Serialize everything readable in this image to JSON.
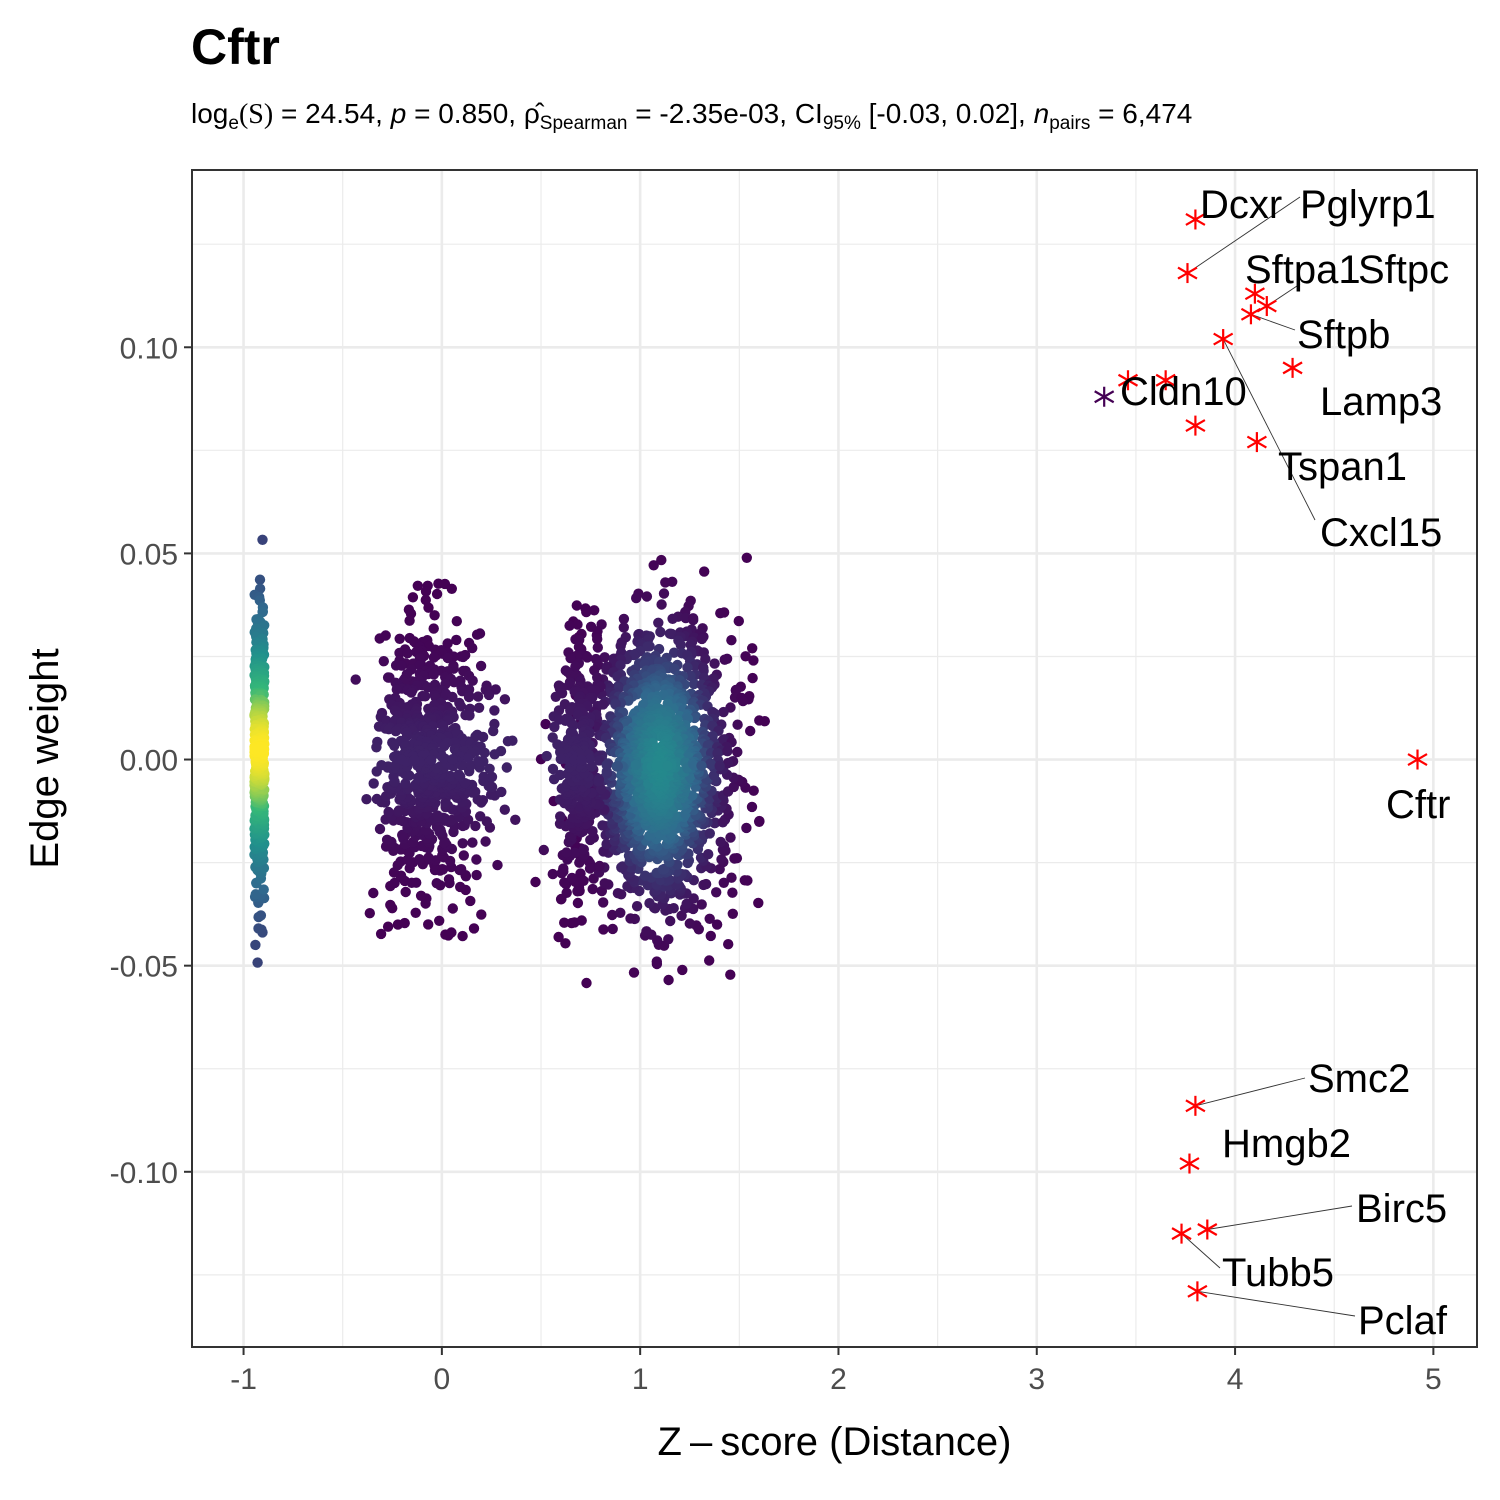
{
  "chart_data": {
    "type": "scatter",
    "title": "Cftr",
    "subtitle": {
      "log_label": "log",
      "log_sub": "e",
      "S_label": "(S)",
      "S_value": " = 24.54, ",
      "p_label": "p",
      "p_value": " = 0.850, ",
      "rho_label": "ρ̂",
      "rho_sub": "Spearman",
      "rho_value": " = -2.35e-03, ",
      "ci_label": "CI",
      "ci_sub": "95%",
      "ci_value": " [-0.03, 0.02], ",
      "n_label": "n",
      "n_sub": "pairs",
      "n_value": " = 6,474"
    },
    "xlabel": "Z – score (Distance)",
    "ylabel": "Edge weight",
    "xlim": [
      -1.26,
      5.22
    ],
    "ylim": [
      -0.1425,
      0.143
    ],
    "x_ticks": [
      "-1",
      "0",
      "1",
      "2",
      "3",
      "4",
      "5"
    ],
    "y_ticks": [
      "-0.10",
      "-0.05",
      "0.00",
      "0.05",
      "0.10"
    ],
    "grid": true,
    "background_clusters": [
      {
        "x_center": -0.92,
        "x_spread": 0.025,
        "y_min": -0.05,
        "y_max": 0.055,
        "count": 520,
        "density": "high"
      },
      {
        "x_center": -0.05,
        "x_spread": 0.26,
        "y_min": -0.043,
        "y_max": 0.043,
        "count": 700,
        "density": "low"
      },
      {
        "x_center": 1.1,
        "x_spread": 0.33,
        "y_min": -0.055,
        "y_max": 0.052,
        "count": 1500,
        "density": "medium"
      },
      {
        "x_center": 0.68,
        "x_spread": 0.1,
        "y_min": -0.046,
        "y_max": 0.046,
        "count": 260,
        "density": "low"
      }
    ],
    "highlighted_points": [
      {
        "label": "Dcxr",
        "x": 3.8,
        "y": 0.131,
        "color": "#ff0000"
      },
      {
        "label": "Pglyrp1",
        "x": 3.76,
        "y": 0.118,
        "color": "#ff0000"
      },
      {
        "label": "Sftpa1",
        "x": 4.1,
        "y": 0.113,
        "color": "#ff0000"
      },
      {
        "label": "Sftpc",
        "x": 4.16,
        "y": 0.11,
        "color": "#ff0000"
      },
      {
        "label": "Sftpb",
        "x": 4.08,
        "y": 0.108,
        "color": "#ff0000"
      },
      {
        "label": "Cxcl15",
        "x": 3.94,
        "y": 0.102,
        "color": "#ff0000"
      },
      {
        "label": "Lamp3",
        "x": 4.29,
        "y": 0.095,
        "color": "#ff0000"
      },
      {
        "label": "Cldn10",
        "x": 3.65,
        "y": 0.092,
        "color": "#ff0000"
      },
      {
        "label": "",
        "x": 3.46,
        "y": 0.092,
        "color": "#ff0000"
      },
      {
        "label": "",
        "x": 3.34,
        "y": 0.088,
        "color": "#440154"
      },
      {
        "label": "",
        "x": 3.8,
        "y": 0.081,
        "color": "#ff0000"
      },
      {
        "label": "Tspan1",
        "x": 4.11,
        "y": 0.077,
        "color": "#ff0000"
      },
      {
        "label": "Cftr",
        "x": 4.92,
        "y": 0.0,
        "color": "#ff0000"
      },
      {
        "label": "Smc2",
        "x": 3.8,
        "y": -0.084,
        "color": "#ff0000"
      },
      {
        "label": "Hmgb2",
        "x": 3.77,
        "y": -0.098,
        "color": "#ff0000"
      },
      {
        "label": "Birc5",
        "x": 3.86,
        "y": -0.114,
        "color": "#ff0000"
      },
      {
        "label": "Tubb5",
        "x": 3.73,
        "y": -0.115,
        "color": "#ff0000"
      },
      {
        "label": "Pclaf",
        "x": 3.81,
        "y": -0.129,
        "color": "#ff0000"
      }
    ],
    "palette": [
      "#440154",
      "#31688e",
      "#21918c",
      "#35b779",
      "#fde725"
    ]
  }
}
